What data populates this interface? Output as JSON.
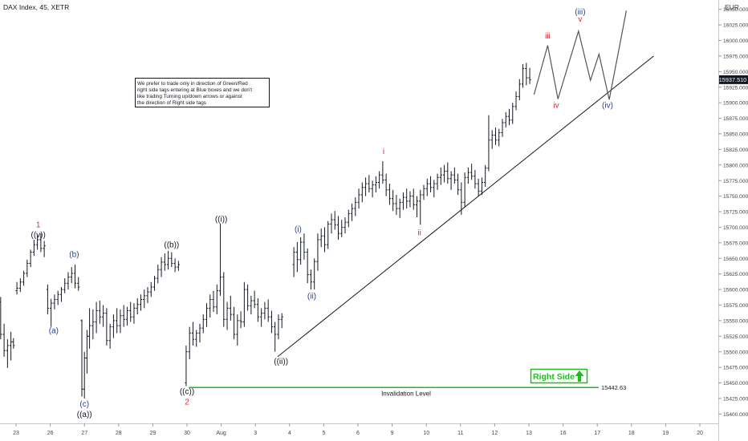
{
  "header": {
    "symbol": "DAX Index, 45, XETR",
    "currency": "EUR"
  },
  "note": {
    "lines": [
      "We prefer to trade only in direction of Green/Red",
      "right side tags entering at Blue boxes and we don't",
      "like trading Turning up/down arrows or against",
      "the direction of Right side tags"
    ]
  },
  "price_tag": {
    "value": "15937.510",
    "bg": "#131722",
    "fg": "#ffffff"
  },
  "invalidation": {
    "value": 15442.63,
    "label": "Invalidation Level",
    "value_label": "15442.63",
    "color": "#1ebd1e"
  },
  "right_side": {
    "label": "Right Side",
    "color": "#1ebd1e",
    "arrow": "up-arrow-icon"
  },
  "colors": {
    "wave_red": "#e3242b",
    "wave_blue": "#2a3f93",
    "wave_black": "#131722",
    "bars": "#131722",
    "axis_text": "#444444"
  },
  "chart_data": {
    "type": "ohlc",
    "timeframe": "45",
    "ylim": [
      15385,
      16065
    ],
    "y_ticks": [
      16050,
      16025,
      16000,
      15975,
      15950,
      15925,
      15900,
      15875,
      15850,
      15825,
      15800,
      15775,
      15750,
      15725,
      15700,
      15675,
      15650,
      15625,
      15600,
      15575,
      15550,
      15525,
      15500,
      15475,
      15450,
      15425,
      15400
    ],
    "y_tick_labels": [
      "16050.000",
      "16025.000",
      "16000.000",
      "15975.000",
      "15950.000",
      "15925.000",
      "15900.000",
      "15875.000",
      "15850.000",
      "15825.000",
      "15800.000",
      "15775.000",
      "15750.000",
      "15725.000",
      "15700.000",
      "15675.000",
      "15650.000",
      "15625.000",
      "15600.000",
      "15575.000",
      "15550.000",
      "15525.000",
      "15500.000",
      "15475.000",
      "15450.000",
      "15425.000",
      "15400.000"
    ],
    "x_labels": [
      "23",
      "26",
      "27",
      "28",
      "29",
      "30",
      "Aug",
      "3",
      "4",
      "5",
      "6",
      "9",
      "10",
      "11",
      "12",
      "13",
      "16",
      "17",
      "18",
      "19",
      "20"
    ],
    "x_label_pos": [
      0,
      2,
      4,
      6,
      8,
      10,
      12,
      14,
      16,
      18,
      20,
      22,
      24,
      26,
      28,
      30,
      32,
      34,
      36,
      38,
      40
    ],
    "wave_labels": [
      {
        "text": "1",
        "x": 1.3,
        "y": 15700,
        "color": "red"
      },
      {
        "text": "((v))",
        "x": 1.3,
        "y": 15684,
        "color": "black"
      },
      {
        "text": "(a)",
        "x": 2.2,
        "y": 15530,
        "color": "blue"
      },
      {
        "text": "(b)",
        "x": 3.4,
        "y": 15652,
        "color": "blue"
      },
      {
        "text": "(c)",
        "x": 4.0,
        "y": 15412,
        "color": "blue"
      },
      {
        "text": "((a))",
        "x": 4.0,
        "y": 15395,
        "color": "black"
      },
      {
        "text": "((b))",
        "x": 9.1,
        "y": 15668,
        "color": "black"
      },
      {
        "text": "((c))",
        "x": 10.0,
        "y": 15432,
        "color": "black"
      },
      {
        "text": "2",
        "x": 10.0,
        "y": 15415,
        "color": "red"
      },
      {
        "text": "((i))",
        "x": 12.0,
        "y": 15709,
        "color": "black"
      },
      {
        "text": "((ii))",
        "x": 15.5,
        "y": 15480,
        "color": "black"
      },
      {
        "text": "(i)",
        "x": 16.5,
        "y": 15693,
        "color": "blue"
      },
      {
        "text": "(ii)",
        "x": 17.3,
        "y": 15585,
        "color": "blue"
      },
      {
        "text": "i",
        "x": 21.5,
        "y": 15818,
        "color": "red"
      },
      {
        "text": "ii",
        "x": 23.6,
        "y": 15687,
        "color": "red"
      },
      {
        "text": "iii",
        "x": 31.1,
        "y": 16003,
        "color": "red"
      },
      {
        "text": "iv",
        "x": 31.6,
        "y": 15892,
        "color": "red"
      },
      {
        "text": "(iii)",
        "x": 33.0,
        "y": 16042,
        "color": "blue"
      },
      {
        "text": "v",
        "x": 33.0,
        "y": 16030,
        "color": "red"
      },
      {
        "text": "(iv)",
        "x": 34.6,
        "y": 15892,
        "color": "blue"
      }
    ],
    "trendline": {
      "from": [
        15.3,
        15492
      ],
      "to": [
        37.3,
        15975
      ]
    },
    "projection": [
      [
        30.3,
        15913
      ],
      [
        31.1,
        15992
      ],
      [
        31.7,
        15906
      ],
      [
        32.9,
        16015
      ],
      [
        33.6,
        15936
      ],
      [
        34.1,
        15978
      ],
      [
        34.7,
        15905
      ],
      [
        35.7,
        16048
      ]
    ],
    "bars": [
      [
        -0.9,
        15580,
        15588,
        15520,
        15528
      ],
      [
        -0.7,
        15528,
        15545,
        15492,
        15502
      ],
      [
        -0.5,
        15502,
        15520,
        15474,
        15510
      ],
      [
        -0.3,
        15510,
        15532,
        15486,
        15516
      ],
      [
        -0.15,
        15516,
        15522,
        15505,
        15510
      ],
      [
        0.05,
        15598,
        15612,
        15592,
        15602
      ],
      [
        0.25,
        15602,
        15618,
        15596,
        15612
      ],
      [
        0.45,
        15612,
        15630,
        15606,
        15626
      ],
      [
        0.65,
        15626,
        15648,
        15620,
        15642
      ],
      [
        0.85,
        15642,
        15664,
        15636,
        15660
      ],
      [
        1.05,
        15660,
        15680,
        15654,
        15672
      ],
      [
        1.25,
        15672,
        15688,
        15664,
        15680
      ],
      [
        1.45,
        15680,
        15690,
        15660,
        15666
      ],
      [
        1.65,
        15666,
        15678,
        15652,
        15670
      ],
      [
        1.85,
        15600,
        15608,
        15560,
        15570
      ],
      [
        2.05,
        15570,
        15585,
        15540,
        15578
      ],
      [
        2.25,
        15578,
        15592,
        15568,
        15584
      ],
      [
        2.45,
        15584,
        15598,
        15575,
        15592
      ],
      [
        2.65,
        15592,
        15604,
        15580,
        15600
      ],
      [
        2.85,
        15600,
        15618,
        15594,
        15610
      ],
      [
        3.05,
        15610,
        15628,
        15600,
        15620
      ],
      [
        3.25,
        15620,
        15636,
        15610,
        15626
      ],
      [
        3.45,
        15626,
        15640,
        15602,
        15610
      ],
      [
        3.65,
        15610,
        15620,
        15598,
        15604
      ],
      [
        3.85,
        15550,
        15552,
        15428,
        15440
      ],
      [
        4.0,
        15440,
        15500,
        15425,
        15490
      ],
      [
        4.15,
        15490,
        15535,
        15465,
        15525
      ],
      [
        4.3,
        15525,
        15570,
        15505,
        15542
      ],
      [
        4.5,
        15542,
        15568,
        15520,
        15548
      ],
      [
        4.7,
        15548,
        15580,
        15530,
        15566
      ],
      [
        4.9,
        15566,
        15582,
        15545,
        15556
      ],
      [
        5.1,
        15556,
        15575,
        15540,
        15562
      ],
      [
        5.3,
        15562,
        15570,
        15510,
        15518
      ],
      [
        5.5,
        15518,
        15545,
        15505,
        15540
      ],
      [
        5.7,
        15540,
        15560,
        15522,
        15550
      ],
      [
        5.9,
        15550,
        15570,
        15530,
        15542
      ],
      [
        6.1,
        15542,
        15568,
        15530,
        15558
      ],
      [
        6.3,
        15558,
        15575,
        15540,
        15552
      ],
      [
        6.5,
        15552,
        15572,
        15542,
        15566
      ],
      [
        6.7,
        15566,
        15580,
        15548,
        15556
      ],
      [
        6.9,
        15556,
        15578,
        15545,
        15570
      ],
      [
        7.1,
        15570,
        15586,
        15560,
        15576
      ],
      [
        7.3,
        15576,
        15592,
        15566,
        15584
      ],
      [
        7.5,
        15584,
        15600,
        15570,
        15590
      ],
      [
        7.7,
        15590,
        15604,
        15578,
        15596
      ],
      [
        7.9,
        15596,
        15612,
        15588,
        15604
      ],
      [
        8.1,
        15604,
        15622,
        15598,
        15618
      ],
      [
        8.3,
        15618,
        15640,
        15610,
        15632
      ],
      [
        8.5,
        15632,
        15652,
        15620,
        15644
      ],
      [
        8.7,
        15644,
        15658,
        15630,
        15640
      ],
      [
        8.9,
        15640,
        15662,
        15632,
        15650
      ],
      [
        9.1,
        15650,
        15660,
        15636,
        15642
      ],
      [
        9.3,
        15642,
        15650,
        15628,
        15636
      ],
      [
        9.5,
        15636,
        15646,
        15630,
        15640
      ],
      [
        9.95,
        15450,
        15510,
        15445,
        15500
      ],
      [
        10.15,
        15500,
        15540,
        15488,
        15530
      ],
      [
        10.35,
        15530,
        15548,
        15510,
        15520
      ],
      [
        10.55,
        15520,
        15535,
        15508,
        15530
      ],
      [
        10.75,
        15530,
        15545,
        15515,
        15538
      ],
      [
        10.95,
        15538,
        15560,
        15530,
        15552
      ],
      [
        11.15,
        15552,
        15578,
        15540,
        15570
      ],
      [
        11.35,
        15570,
        15592,
        15555,
        15584
      ],
      [
        11.55,
        15584,
        15598,
        15564,
        15572
      ],
      [
        11.75,
        15572,
        15608,
        15560,
        15598
      ],
      [
        11.95,
        15598,
        15706,
        15590,
        15620
      ],
      [
        12.15,
        15620,
        15628,
        15540,
        15552
      ],
      [
        12.35,
        15552,
        15580,
        15535,
        15570
      ],
      [
        12.55,
        15570,
        15590,
        15550,
        15560
      ],
      [
        12.75,
        15560,
        15572,
        15520,
        15528
      ],
      [
        12.95,
        15528,
        15560,
        15510,
        15550
      ],
      [
        13.15,
        15550,
        15565,
        15538,
        15548
      ],
      [
        13.35,
        15548,
        15612,
        15540,
        15600
      ],
      [
        13.55,
        15600,
        15608,
        15566,
        15574
      ],
      [
        13.75,
        15574,
        15590,
        15560,
        15582
      ],
      [
        13.95,
        15582,
        15598,
        15570,
        15576
      ],
      [
        14.15,
        15576,
        15586,
        15548,
        15556
      ],
      [
        14.35,
        15556,
        15570,
        15540,
        15562
      ],
      [
        14.55,
        15562,
        15580,
        15552,
        15570
      ],
      [
        14.75,
        15570,
        15584,
        15548,
        15556
      ],
      [
        14.95,
        15556,
        15566,
        15530,
        15540
      ],
      [
        15.15,
        15540,
        15548,
        15500,
        15528
      ],
      [
        15.35,
        15528,
        15560,
        15520,
        15552
      ],
      [
        15.55,
        15552,
        15562,
        15538,
        15556
      ],
      [
        16.25,
        15640,
        15668,
        15620,
        15660
      ],
      [
        16.45,
        15660,
        15676,
        15628,
        15648
      ],
      [
        16.65,
        15648,
        15684,
        15640,
        15676
      ],
      [
        16.85,
        15676,
        15690,
        15648,
        15660
      ],
      [
        17.05,
        15660,
        15666,
        15610,
        15624
      ],
      [
        17.25,
        15624,
        15632,
        15600,
        15612
      ],
      [
        17.45,
        15612,
        15650,
        15600,
        15645
      ],
      [
        17.65,
        15645,
        15690,
        15630,
        15680
      ],
      [
        17.85,
        15680,
        15698,
        15668,
        15686
      ],
      [
        18.05,
        15686,
        15700,
        15660,
        15672
      ],
      [
        18.25,
        15672,
        15710,
        15665,
        15705
      ],
      [
        18.45,
        15705,
        15722,
        15690,
        15712
      ],
      [
        18.65,
        15712,
        15726,
        15696,
        15704
      ],
      [
        18.85,
        15704,
        15718,
        15680,
        15690
      ],
      [
        19.05,
        15690,
        15712,
        15684,
        15700
      ],
      [
        19.25,
        15700,
        15716,
        15690,
        15708
      ],
      [
        19.45,
        15708,
        15728,
        15700,
        15722
      ],
      [
        19.65,
        15722,
        15738,
        15710,
        15730
      ],
      [
        19.85,
        15730,
        15748,
        15718,
        15740
      ],
      [
        20.05,
        15740,
        15762,
        15730,
        15752
      ],
      [
        20.25,
        15752,
        15772,
        15740,
        15764
      ],
      [
        20.45,
        15764,
        15780,
        15750,
        15770
      ],
      [
        20.65,
        15770,
        15784,
        15756,
        15762
      ],
      [
        20.85,
        15762,
        15775,
        15748,
        15768
      ],
      [
        21.05,
        15768,
        15782,
        15756,
        15772
      ],
      [
        21.25,
        15772,
        15790,
        15762,
        15784
      ],
      [
        21.45,
        15784,
        15806,
        15770,
        15776
      ],
      [
        21.65,
        15776,
        15786,
        15750,
        15760
      ],
      [
        21.85,
        15760,
        15770,
        15736,
        15746
      ],
      [
        22.05,
        15746,
        15760,
        15726,
        15738
      ],
      [
        22.25,
        15738,
        15752,
        15720,
        15730
      ],
      [
        22.45,
        15730,
        15746,
        15715,
        15740
      ],
      [
        22.65,
        15740,
        15756,
        15728,
        15748
      ],
      [
        22.85,
        15748,
        15762,
        15730,
        15742
      ],
      [
        23.05,
        15742,
        15758,
        15732,
        15750
      ],
      [
        23.25,
        15750,
        15762,
        15728,
        15736
      ],
      [
        23.45,
        15736,
        15750,
        15716,
        15742
      ],
      [
        23.65,
        15742,
        15760,
        15704,
        15752
      ],
      [
        23.85,
        15752,
        15768,
        15744,
        15762
      ],
      [
        24.05,
        15762,
        15778,
        15750,
        15770
      ],
      [
        24.25,
        15770,
        15782,
        15756,
        15764
      ],
      [
        24.45,
        15764,
        15776,
        15748,
        15770
      ],
      [
        24.65,
        15770,
        15786,
        15760,
        15780
      ],
      [
        24.85,
        15780,
        15796,
        15768,
        15784
      ],
      [
        25.05,
        15784,
        15800,
        15772,
        15790
      ],
      [
        25.25,
        15790,
        15804,
        15770,
        15778
      ],
      [
        25.45,
        15778,
        15790,
        15760,
        15784
      ],
      [
        25.65,
        15784,
        15796,
        15770,
        15776
      ],
      [
        25.85,
        15776,
        15786,
        15752,
        15760
      ],
      [
        26.05,
        15760,
        15772,
        15720,
        15740
      ],
      [
        26.25,
        15740,
        15788,
        15732,
        15780
      ],
      [
        26.45,
        15780,
        15796,
        15770,
        15788
      ],
      [
        26.65,
        15788,
        15802,
        15776,
        15782
      ],
      [
        26.85,
        15782,
        15792,
        15762,
        15770
      ],
      [
        27.05,
        15770,
        15778,
        15750,
        15758
      ],
      [
        27.25,
        15758,
        15780,
        15752,
        15772
      ],
      [
        27.45,
        15772,
        15800,
        15765,
        15795
      ],
      [
        27.65,
        15795,
        15880,
        15790,
        15840
      ],
      [
        27.85,
        15840,
        15856,
        15826,
        15848
      ],
      [
        28.05,
        15848,
        15860,
        15832,
        15840
      ],
      [
        28.25,
        15840,
        15858,
        15830,
        15852
      ],
      [
        28.45,
        15852,
        15874,
        15845,
        15868
      ],
      [
        28.65,
        15868,
        15885,
        15860,
        15878
      ],
      [
        28.85,
        15878,
        15890,
        15864,
        15872
      ],
      [
        29.05,
        15872,
        15900,
        15866,
        15894
      ],
      [
        29.25,
        15894,
        15918,
        15888,
        15910
      ],
      [
        29.45,
        15910,
        15938,
        15904,
        15930
      ],
      [
        29.65,
        15930,
        15962,
        15924,
        15955
      ],
      [
        29.85,
        15955,
        15964,
        15928,
        15940
      ],
      [
        30.05,
        15940,
        15956,
        15930,
        15937
      ]
    ]
  }
}
